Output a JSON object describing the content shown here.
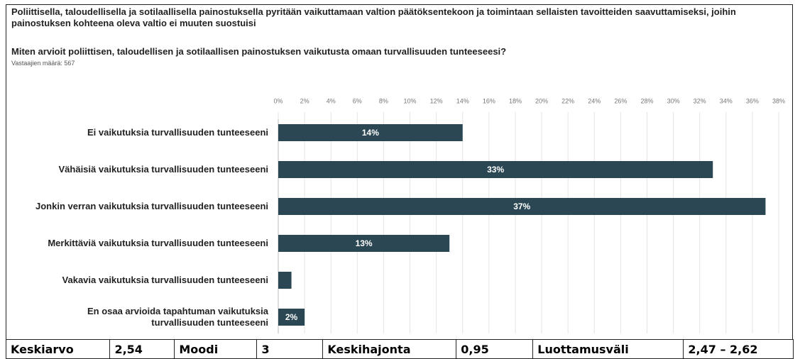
{
  "chart_data": {
    "type": "bar",
    "orientation": "horizontal",
    "title": "Poliittisella, taloudellisella ja sotilaallisella painostuksella pyritään vaikuttamaan valtion päätöksentekoon ja toimintaan sellaisten tavoitteiden saavuttamiseksi, joihin painostuksen kohteena oleva valtio ei muuten suostuisi",
    "subtitle": "Miten arvioit poliittisen, taloudellisen ja sotilaallisen painostuksen vaikutusta omaan turvallisuuden tunteeseesi?",
    "note": "Vastaajien määrä: 567",
    "categories": [
      "Ei vaikutuksia turvallisuuden tunteeseeni",
      "Vähäisiä vaikutuksia turvallisuuden tunteeseeni",
      "Jonkin verran vaikutuksia turvallisuuden tunteeseeni",
      "Merkittäviä vaikutuksia turvallisuuden tunteeseeni",
      "Vakavia vaikutuksia turvallisuuden tunteeseeni",
      "En osaa arvioida tapahtuman vaikutuksia turvallisuuden tunteeseeni"
    ],
    "values": [
      14,
      33,
      37,
      13,
      1,
      2
    ],
    "value_labels": [
      "14%",
      "33%",
      "37%",
      "13%",
      null,
      "2%"
    ],
    "color": "#2a4753",
    "xlim": [
      0,
      38
    ],
    "xticks": [
      {
        "value": 0,
        "label": "0%"
      },
      {
        "value": 2,
        "label": "2%"
      },
      {
        "value": 4,
        "label": "4%"
      },
      {
        "value": 6,
        "label": "6%"
      },
      {
        "value": 8,
        "label": "8%"
      },
      {
        "value": 10,
        "label": "10%"
      },
      {
        "value": 12,
        "label": "12%"
      },
      {
        "value": 14,
        "label": "14%"
      },
      {
        "value": 16,
        "label": "16%"
      },
      {
        "value": 18,
        "label": "18%"
      },
      {
        "value": 20,
        "label": "20%"
      },
      {
        "value": 22,
        "label": "22%"
      },
      {
        "value": 24,
        "label": "24%"
      },
      {
        "value": 26,
        "label": "26%"
      },
      {
        "value": 28,
        "label": "28%"
      },
      {
        "value": 30,
        "label": "30%"
      },
      {
        "value": 32,
        "label": "32%"
      },
      {
        "value": 34,
        "label": "34%"
      },
      {
        "value": 36,
        "label": "36%"
      },
      {
        "value": 38,
        "label": "38%"
      }
    ],
    "grid": true
  },
  "table": {
    "cells": [
      "Keskiarvo",
      "2,54",
      "Moodi",
      "3",
      "Keskihajonta",
      "0,95",
      "Luottamusväli",
      "2,47 – 2,62"
    ]
  }
}
